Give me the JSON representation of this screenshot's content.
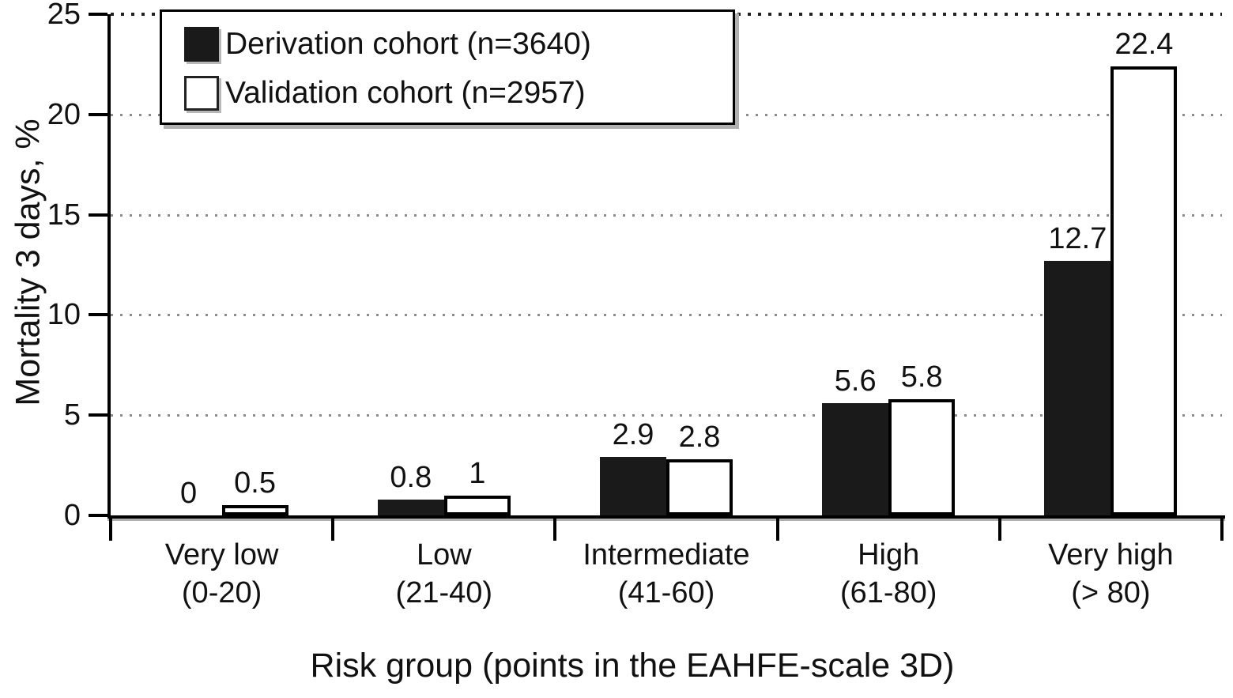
{
  "chart_data": {
    "type": "bar",
    "title": "",
    "xlabel": "Risk group (points in the EAHFE-scale 3D)",
    "ylabel": "Mortality 3 days, %",
    "ylim": [
      0,
      25
    ],
    "yticks": [
      0,
      5,
      10,
      15,
      20,
      25
    ],
    "grid": "horizontal dotted gridlines at each y tick",
    "legend": {
      "position": "top-left inside plot",
      "items": [
        {
          "label": "Derivation cohort (n=3640)",
          "swatch": "black-filled"
        },
        {
          "label": "Validation cohort (n=2957)",
          "swatch": "white-outlined"
        }
      ]
    },
    "categories": [
      {
        "line1": "Very low",
        "line2": "(0-20)"
      },
      {
        "line1": "Low",
        "line2": "(21-40)"
      },
      {
        "line1": "Intermediate",
        "line2": "(41-60)"
      },
      {
        "line1": "High",
        "line2": "(61-80)"
      },
      {
        "line1": "Very high",
        "line2": "(> 80)"
      }
    ],
    "series": [
      {
        "name": "Derivation cohort (n=3640)",
        "style": "filled",
        "values": [
          0,
          0.8,
          2.9,
          5.6,
          12.7
        ],
        "value_labels": [
          "0",
          "0.8",
          "2.9",
          "5.6",
          "12.7"
        ]
      },
      {
        "name": "Validation cohort (n=2957)",
        "style": "outlined",
        "values": [
          0.5,
          1,
          2.8,
          5.8,
          22.4
        ],
        "value_labels": [
          "0.5",
          "1",
          "2.8",
          "5.8",
          "22.4"
        ]
      }
    ],
    "colors": {
      "bar_fill_dark": "#1a1a1a",
      "bar_outline": "#000000",
      "grid_top": "#222222",
      "grid": "#8c8c8c",
      "axis": "#000000",
      "shadow": "#b0b0b0",
      "text": "#111111",
      "background": "#ffffff"
    }
  }
}
